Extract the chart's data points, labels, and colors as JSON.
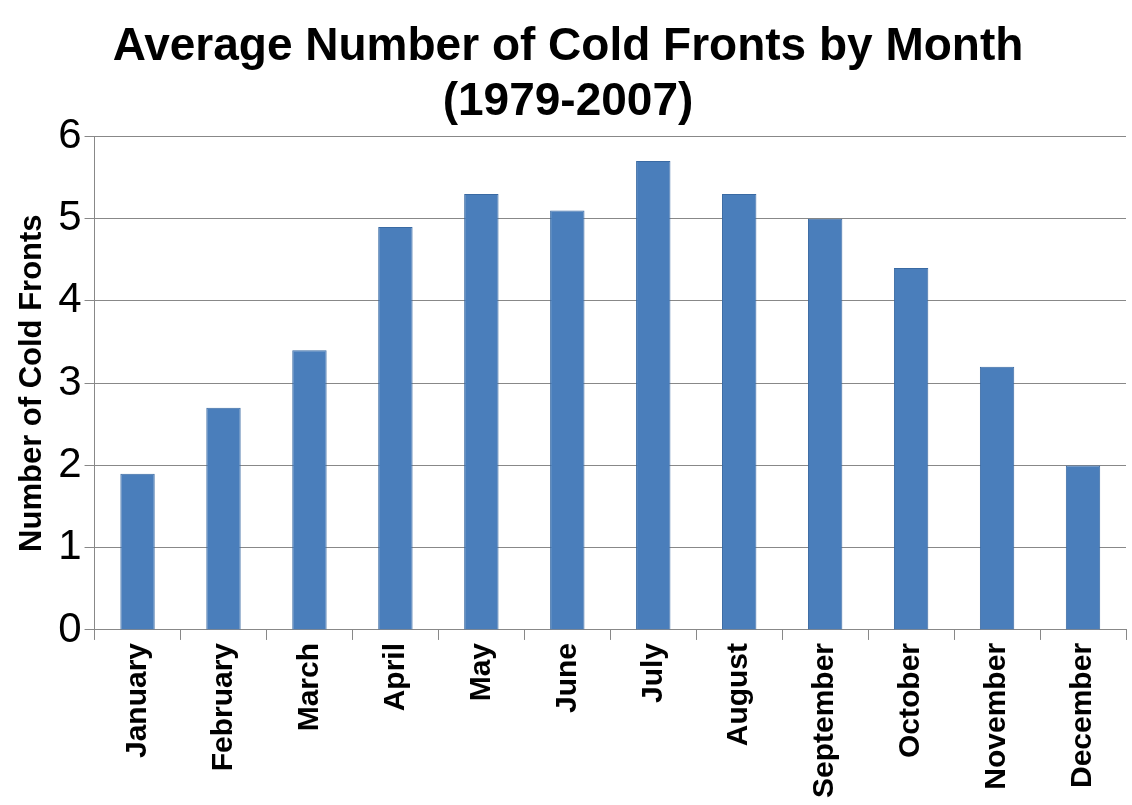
{
  "chart_data": {
    "type": "bar",
    "title": "Average Number of Cold Fronts by Month (1979-2007)",
    "ylabel": "Number of Cold Fronts",
    "categories": [
      "January",
      "February",
      "March",
      "April",
      "May",
      "June",
      "July",
      "August",
      "September",
      "October",
      "November",
      "December"
    ],
    "values": [
      1.9,
      2.7,
      3.4,
      4.9,
      5.3,
      5.1,
      5.7,
      5.3,
      5.0,
      4.4,
      3.2,
      2.0
    ],
    "color": "#4a7ebb",
    "ylim": [
      0,
      6
    ],
    "yticks": [
      0,
      1,
      2,
      3,
      4,
      5,
      6
    ],
    "grid": "y",
    "legend": false
  }
}
